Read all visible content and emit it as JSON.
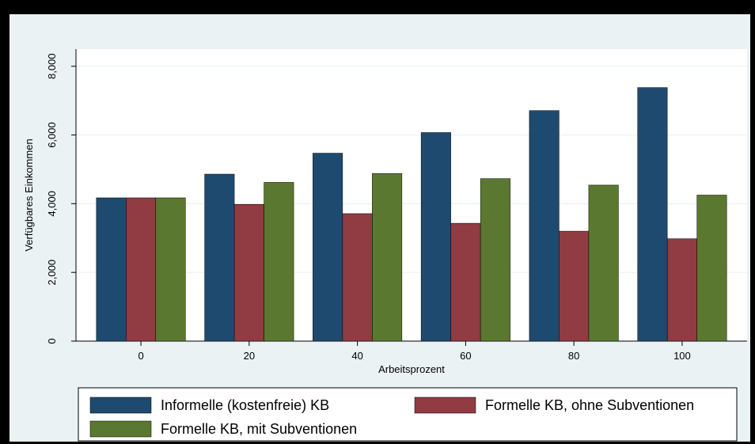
{
  "chart_data": {
    "type": "bar",
    "title": "",
    "xlabel": "Arbeitsprozent",
    "ylabel": "Verfügbares Einkommen",
    "categories": [
      "0",
      "20",
      "40",
      "60",
      "80",
      "100"
    ],
    "ylim": [
      0,
      8500
    ],
    "yticks": [
      0,
      2000,
      4000,
      6000,
      8000
    ],
    "ytick_labels": [
      "0",
      "2,000",
      "4,000",
      "6,000",
      "8,000"
    ],
    "grid": true,
    "legend_position": "bottom",
    "series": [
      {
        "name": "Informelle (kostenfreie) KB",
        "color": "#1f4a70",
        "values": [
          4170,
          4860,
          5470,
          6070,
          6710,
          7380
        ]
      },
      {
        "name": "Formelle KB, ohne Subventionen",
        "color": "#913b42",
        "values": [
          4170,
          3980,
          3710,
          3430,
          3200,
          2980
        ]
      },
      {
        "name": "Formelle KB, mit Subventionen",
        "color": "#5b7830",
        "values": [
          4170,
          4620,
          4880,
          4730,
          4540,
          4250
        ]
      }
    ]
  }
}
